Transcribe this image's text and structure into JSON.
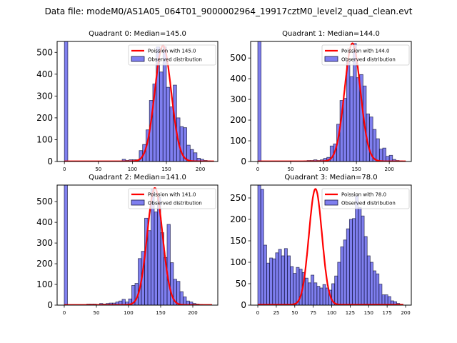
{
  "chart_data": {
    "type": "histogram-grid",
    "suptitle": "Data file: modeM0/AS1A05_064T01_9000002964_19917cztM0_level2_quad_clean.evt",
    "colors": {
      "bar_fill": "#0000e0",
      "bar_alpha": 0.5,
      "bar_edge": "#1a1a40",
      "poisson_line": "#ff0000"
    },
    "bin_width": 5,
    "panels": [
      {
        "title": "Quadrant 0: Median=145.0",
        "median": 145.0,
        "legend": [
          "Poission with 145.0",
          "Observed distribution"
        ],
        "xlim": [
          -10.7,
          225.6
        ],
        "ylim": [
          0,
          550
        ],
        "xticks": [
          0,
          50,
          100,
          150,
          200
        ],
        "yticks": [
          0,
          100,
          200,
          300,
          400,
          500
        ],
        "poisson_peak": 530,
        "bins_start": [
          0,
          85,
          90,
          95,
          100,
          105,
          110,
          115,
          120,
          125,
          130,
          135,
          140,
          145,
          150,
          155,
          160,
          165,
          170,
          175,
          180,
          185,
          190,
          195,
          200,
          205,
          210
        ],
        "counts": [
          560,
          10,
          5,
          8,
          8,
          8,
          50,
          78,
          145,
          280,
          355,
          525,
          410,
          525,
          340,
          250,
          350,
          200,
          160,
          155,
          75,
          55,
          40,
          15,
          10,
          5,
          3
        ]
      },
      {
        "title": "Quadrant 1: Median=144.0",
        "median": 144.0,
        "legend": [
          "Poission with 144.0",
          "Observed distribution"
        ],
        "xlim": [
          -10.9,
          233.5
        ],
        "ylim": [
          0,
          580
        ],
        "xticks": [
          0,
          50,
          100,
          150,
          200
        ],
        "yticks": [
          0,
          100,
          200,
          300,
          400,
          500
        ],
        "poisson_peak": 570,
        "bins_start": [
          0,
          70,
          75,
          80,
          85,
          90,
          95,
          100,
          105,
          110,
          115,
          120,
          125,
          130,
          135,
          140,
          145,
          150,
          155,
          160,
          165,
          170,
          175,
          180,
          185,
          190,
          195,
          200,
          205,
          210,
          215
        ],
        "counts": [
          600,
          3,
          5,
          5,
          8,
          5,
          8,
          15,
          20,
          75,
          85,
          180,
          295,
          305,
          485,
          410,
          570,
          405,
          420,
          365,
          230,
          215,
          155,
          110,
          60,
          65,
          25,
          30,
          10,
          5,
          3
        ]
      },
      {
        "title": "Quadrant 2: Median=141.0",
        "median": 141.0,
        "legend": [
          "Poission with 141.0",
          "Observed distribution"
        ],
        "xlim": [
          -11.1,
          238.9
        ],
        "ylim": [
          0,
          580
        ],
        "xticks": [
          0,
          50,
          100,
          150,
          200
        ],
        "yticks": [
          0,
          100,
          200,
          300,
          400,
          500
        ],
        "poisson_peak": 565,
        "bins_start": [
          0,
          35,
          40,
          45,
          50,
          55,
          60,
          65,
          70,
          75,
          80,
          85,
          90,
          95,
          100,
          105,
          110,
          115,
          120,
          125,
          130,
          135,
          140,
          145,
          150,
          155,
          160,
          165,
          170,
          175,
          180,
          185,
          190,
          195,
          200,
          205,
          210,
          215,
          220
        ],
        "counts": [
          600,
          5,
          5,
          5,
          3,
          8,
          5,
          8,
          10,
          10,
          15,
          20,
          28,
          15,
          30,
          95,
          105,
          225,
          260,
          420,
          360,
          560,
          450,
          520,
          350,
          230,
          390,
          205,
          125,
          115,
          65,
          40,
          20,
          15,
          8,
          5,
          3,
          2,
          2
        ]
      },
      {
        "title": "Quadrant 3: Median=78.0",
        "median": 78.0,
        "legend": [
          "Poission with 78.0",
          "Observed distribution"
        ],
        "xlim": [
          -9.7,
          207.7
        ],
        "ylim": [
          0,
          280
        ],
        "xticks": [
          0,
          25,
          50,
          75,
          100,
          125,
          150,
          175,
          200
        ],
        "yticks": [
          0,
          50,
          100,
          150,
          200,
          250
        ],
        "poisson_peak": 270,
        "bins_start": [
          0,
          4,
          8,
          12,
          16,
          20,
          24,
          28,
          32,
          36,
          40,
          44,
          48,
          52,
          56,
          60,
          64,
          68,
          72,
          76,
          80,
          84,
          88,
          92,
          96,
          100,
          104,
          108,
          112,
          116,
          120,
          124,
          128,
          132,
          136,
          140,
          144,
          148,
          152,
          156,
          160,
          164,
          168,
          172,
          176,
          180,
          184,
          188
        ],
        "counts": [
          290,
          270,
          140,
          98,
          110,
          108,
          122,
          130,
          115,
          132,
          115,
          90,
          74,
          88,
          84,
          76,
          63,
          52,
          70,
          52,
          44,
          40,
          48,
          40,
          35,
          50,
          68,
          100,
          136,
          152,
          178,
          200,
          202,
          255,
          228,
          208,
          160,
          115,
          100,
          80,
          73,
          49,
          24,
          24,
          20,
          10,
          8,
          4
        ]
      }
    ]
  }
}
